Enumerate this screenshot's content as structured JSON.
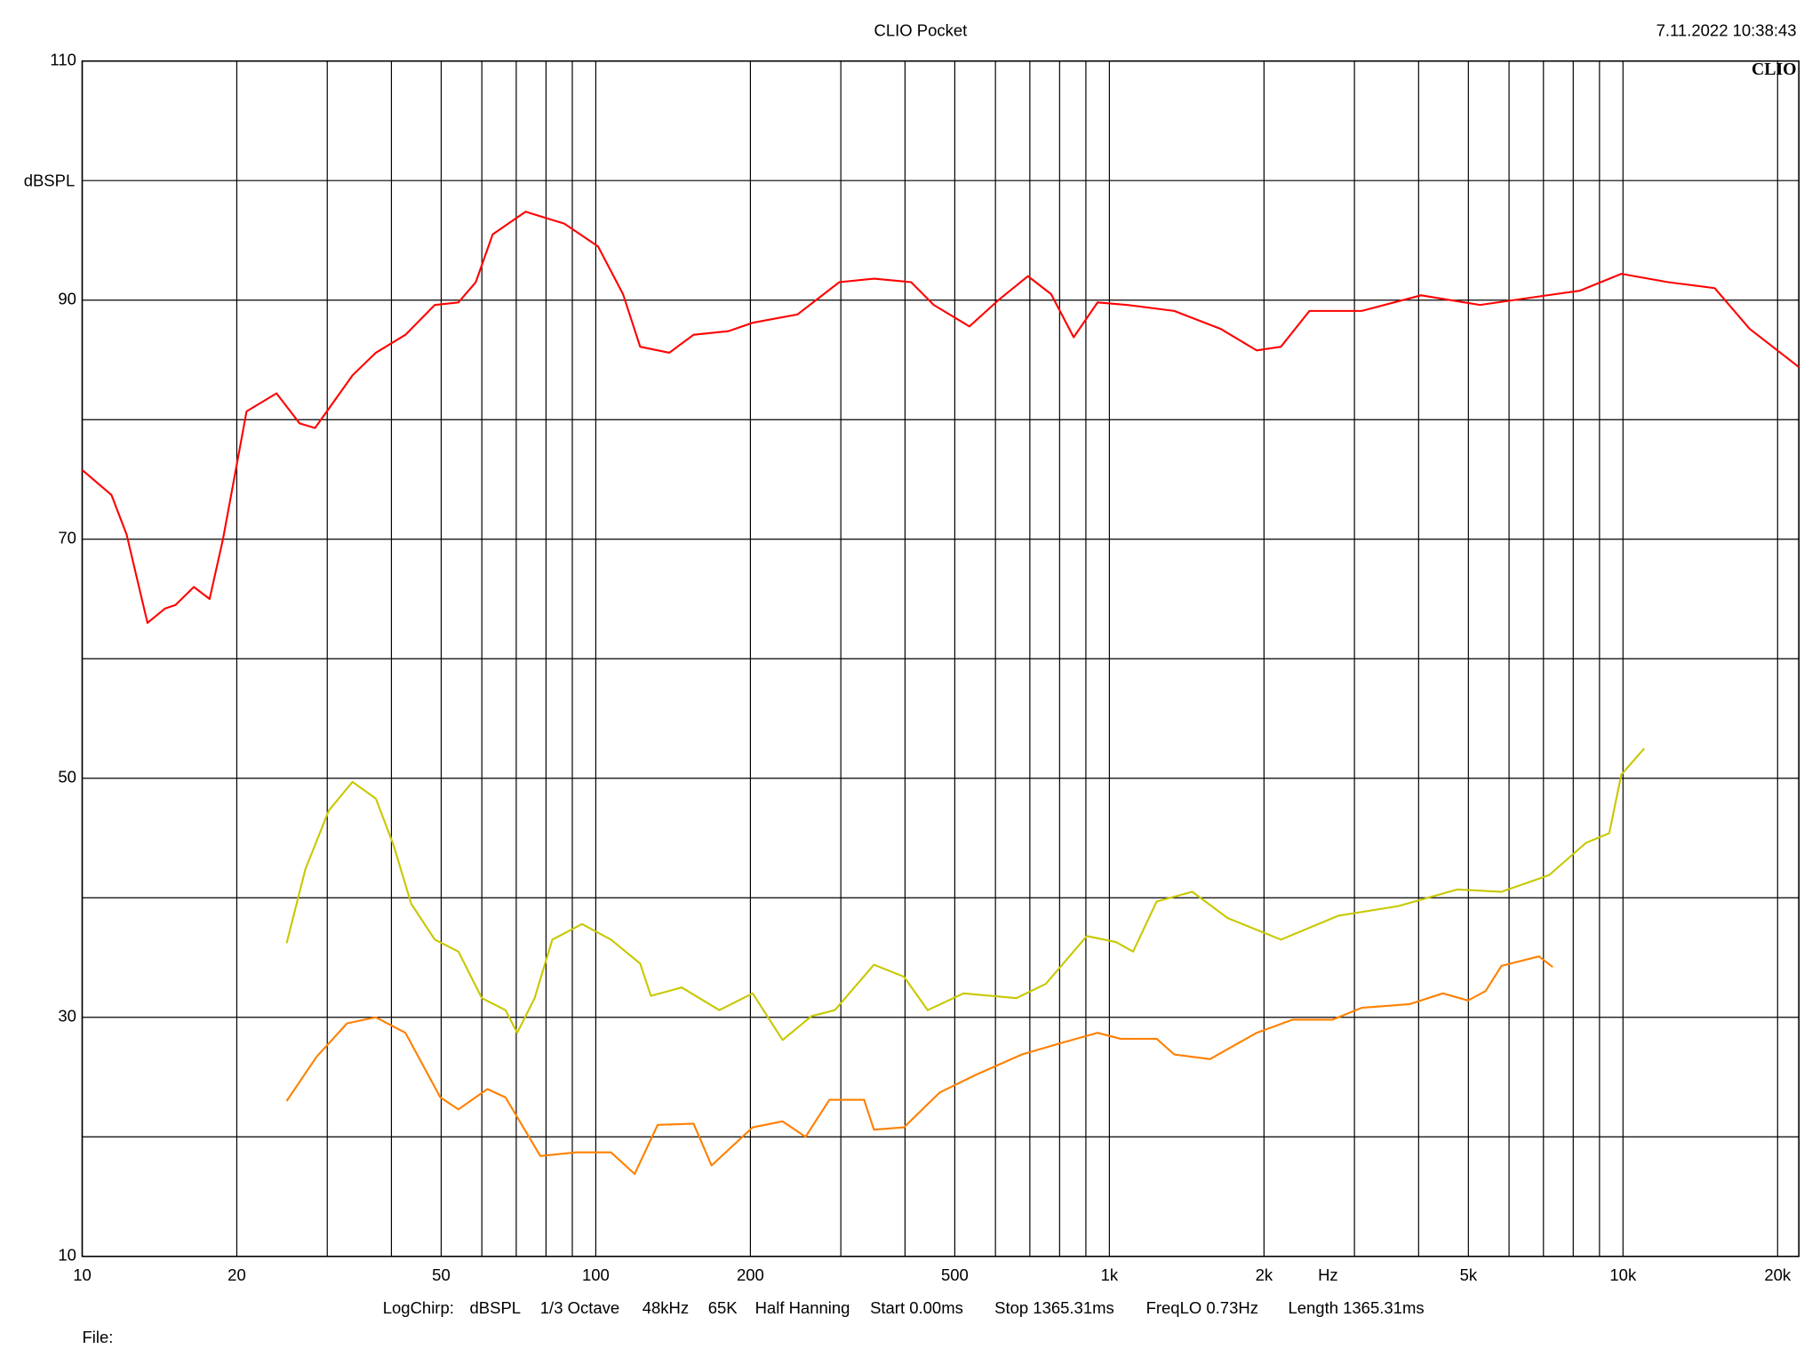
{
  "chart_data": {
    "type": "line",
    "title": "CLIO Pocket",
    "timestamp": "7.11.2022 10:38:43",
    "logo": "CLIO",
    "ylabel": "dBSPL",
    "xlabel": "Hz",
    "footer_items": [
      "LogChirp:",
      "dBSPL",
      "1/3 Octave",
      "48kHz",
      "65K",
      "Half Hanning",
      "Start 0.00ms",
      "Stop 1365.31ms",
      "FreqLO 0.73Hz",
      "Length 1365.31ms"
    ],
    "file_label": "File:",
    "xscale": "log",
    "grid": true,
    "xlim": [
      10,
      22000
    ],
    "ylim": [
      10,
      110
    ],
    "xticks": [
      10,
      20,
      50,
      100,
      200,
      500,
      {
        "value": 1000,
        "label": "1k"
      },
      {
        "value": 2000,
        "label": "2k"
      },
      {
        "value": 5000,
        "label": "5k"
      },
      {
        "value": 10000,
        "label": "10k"
      },
      {
        "value": 20000,
        "label": "20k"
      }
    ],
    "x_minor_grid": [
      30,
      40,
      60,
      70,
      80,
      90,
      300,
      400,
      600,
      700,
      800,
      900,
      3000,
      4000,
      6000,
      7000,
      8000,
      9000
    ],
    "yticks": [
      10,
      30,
      50,
      70,
      90,
      110
    ],
    "y_minor_grid": [
      20,
      40,
      60,
      80,
      100
    ],
    "series": [
      {
        "color": "#ff0000",
        "x": [
          10,
          11.4,
          12.2,
          13.4,
          14.5,
          15.2,
          16.5,
          17.7,
          18.8,
          20.9,
          23.9,
          26.5,
          28.4,
          33.6,
          37.3,
          42.6,
          48.6,
          54,
          58.4,
          63,
          73,
          86.8,
          101,
          113,
          122,
          139,
          155,
          181,
          202,
          247,
          298,
          348,
          411,
          455,
          534,
          608,
          694,
          770,
          852,
          948,
          1085,
          1337,
          1645,
          1935,
          2158,
          2452,
          3100,
          4044,
          5270,
          6860,
          8250,
          9925,
          12230,
          15080,
          17640,
          22000
        ],
        "values": [
          75.8,
          73.7,
          70.4,
          63,
          64.2,
          64.5,
          66,
          65,
          70,
          80.7,
          82.2,
          79.7,
          79.3,
          83.7,
          85.6,
          87.1,
          89.6,
          89.8,
          91.5,
          95.5,
          97.4,
          96.4,
          94.5,
          90.5,
          86.1,
          85.6,
          87.1,
          87.4,
          88.1,
          88.8,
          91.5,
          91.8,
          91.5,
          89.6,
          87.8,
          90,
          92,
          90.5,
          86.9,
          89.8,
          89.6,
          89.1,
          87.6,
          85.8,
          86.1,
          89.1,
          89.1,
          90.4,
          89.6,
          90.3,
          90.8,
          92.2,
          91.5,
          91,
          87.6,
          84.4
        ]
      },
      {
        "color": "#c8c800",
        "x": [
          25,
          27.2,
          30.2,
          33.6,
          37.3,
          40.4,
          43.7,
          48.6,
          54,
          60,
          66.7,
          70.3,
          76,
          82.3,
          94,
          107,
          122,
          128,
          147,
          174,
          202,
          231,
          263,
          292,
          348,
          398,
          443,
          520,
          659,
          752,
          904,
          1030,
          1112,
          1236,
          1450,
          1700,
          2158,
          2790,
          3650,
          4760,
          5800,
          7180,
          8470,
          9400,
          9925,
          11000
        ],
        "values": [
          36.2,
          42.4,
          47.3,
          49.7,
          48.3,
          44.4,
          39.5,
          36.5,
          35.5,
          31.6,
          30.6,
          28.7,
          31.6,
          36.5,
          37.8,
          36.5,
          34.5,
          31.8,
          32.5,
          30.6,
          32,
          28.1,
          30.1,
          30.6,
          34.4,
          33.4,
          30.6,
          32,
          31.6,
          32.8,
          36.8,
          36.3,
          35.5,
          39.7,
          40.5,
          38.3,
          36.5,
          38.5,
          39.3,
          40.7,
          40.5,
          41.9,
          44.6,
          45.4,
          50.3,
          52.5
        ]
      },
      {
        "color": "#ff8000",
        "x": [
          25,
          28.6,
          32.8,
          37.3,
          42.6,
          49.8,
          54,
          61.5,
          66.7,
          78,
          91.5,
          107,
          119,
          132,
          155,
          168,
          202,
          231,
          256,
          285,
          333,
          348,
          398,
          467,
          550,
          676,
          813,
          948,
          1052,
          1236,
          1337,
          1570,
          1935,
          2274,
          2720,
          3100,
          3840,
          4460,
          4990,
          5400,
          5800,
          6860,
          7300
        ],
        "values": [
          23,
          26.7,
          29.5,
          30,
          28.7,
          23.3,
          22.3,
          24,
          23.3,
          18.4,
          18.7,
          18.7,
          16.9,
          21,
          21.1,
          17.6,
          20.8,
          21.3,
          20,
          23.1,
          23.1,
          20.6,
          20.8,
          23.7,
          25.2,
          26.9,
          27.9,
          28.7,
          28.2,
          28.2,
          26.9,
          26.5,
          28.7,
          29.8,
          29.8,
          30.8,
          31.1,
          32,
          31.4,
          32.2,
          34.3,
          35.1,
          34.2
        ]
      }
    ]
  }
}
